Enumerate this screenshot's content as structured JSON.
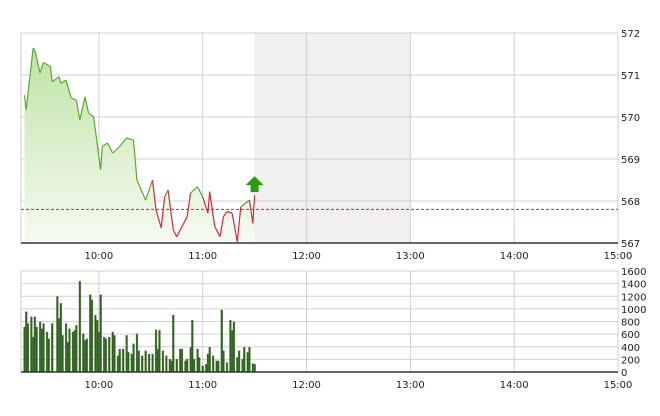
{
  "chart_data": [
    {
      "type": "area",
      "panel": "price",
      "x_ticks": [
        "10:00",
        "11:00",
        "12:00",
        "13:00",
        "14:00",
        "15:00"
      ],
      "y_ticks": [
        567,
        568,
        569,
        570,
        571,
        572
      ],
      "xlim": [
        "09:15",
        "15:00"
      ],
      "ylim": [
        567,
        572
      ],
      "grid": true,
      "y_axis_side": "right",
      "reference_value": 567.8,
      "shaded_range": [
        "11:30",
        "13:00"
      ],
      "colors": {
        "up": "#5aa832",
        "down": "#d9263a",
        "fill": "#bfe3a6",
        "reference": "#e02020",
        "shade": "#f0f0f0",
        "grid": "#cccccc",
        "arrow": "#2e9a12"
      },
      "indicator_icon": "green-up-arrow-icon",
      "series": [
        {
          "x": [
            "09:17",
            "09:18",
            "09:22",
            "09:23",
            "09:26",
            "09:28",
            "09:32",
            "09:33",
            "09:37",
            "09:38",
            "09:41",
            "09:44",
            "09:47",
            "09:49",
            "09:52",
            "09:54",
            "09:57",
            "10:01",
            "10:02",
            "10:05",
            "10:08",
            "10:12",
            "10:16",
            "10:20",
            "10:22",
            "10:27",
            "10:31",
            "10:33",
            "10:36",
            "10:38",
            "10:40",
            "10:43",
            "10:45",
            "10:48",
            "10:51",
            "10:53",
            "10:57",
            "11:00",
            "11:03",
            "11:04",
            "11:07",
            "11:10",
            "11:12",
            "11:14",
            "11:17",
            "11:20",
            "11:22",
            "11:27",
            "11:29",
            "11:30"
          ],
          "y": [
            570.52,
            570.17,
            571.64,
            571.6,
            571.05,
            571.3,
            571.2,
            570.84,
            570.96,
            570.8,
            570.88,
            570.45,
            570.4,
            569.93,
            570.48,
            570.1,
            570.0,
            568.74,
            569.3,
            569.38,
            569.14,
            569.3,
            569.5,
            569.45,
            568.5,
            568.02,
            568.5,
            567.79,
            567.36,
            568.1,
            568.26,
            567.31,
            567.15,
            567.39,
            567.63,
            568.19,
            568.34,
            568.1,
            567.71,
            568.22,
            567.39,
            567.15,
            567.63,
            567.75,
            567.71,
            567.03,
            567.86,
            568.02,
            567.47,
            568.14
          ]
        }
      ]
    },
    {
      "type": "bar",
      "panel": "volume",
      "x_ticks": [
        "10:00",
        "11:00",
        "12:00",
        "13:00",
        "14:00",
        "15:00"
      ],
      "y_ticks": [
        0,
        200,
        400,
        600,
        800,
        1000,
        1200,
        1400,
        1600
      ],
      "xlim": [
        "09:15",
        "15:00"
      ],
      "ylim": [
        0,
        1600
      ],
      "grid": true,
      "y_axis_side": "right",
      "colors": {
        "bar": "#2f5f22",
        "bar_edge": "#5b8a48"
      },
      "x": [
        "09:17",
        "09:18",
        "09:19",
        "09:21",
        "09:22",
        "09:23",
        "09:24",
        "09:26",
        "09:27",
        "09:28",
        "09:30",
        "09:31",
        "09:33",
        "09:36",
        "09:37",
        "09:38",
        "09:39",
        "09:41",
        "09:42",
        "09:43",
        "09:45",
        "09:46",
        "09:47",
        "09:49",
        "09:51",
        "09:52",
        "09:53",
        "09:55",
        "09:56",
        "09:58",
        "09:59",
        "10:00",
        "10:01",
        "10:03",
        "10:04",
        "10:06",
        "10:08",
        "10:09",
        "10:11",
        "10:12",
        "10:14",
        "10:16",
        "10:17",
        "10:19",
        "10:20",
        "10:22",
        "10:23",
        "10:25",
        "10:27",
        "10:29",
        "10:31",
        "10:33",
        "10:34",
        "10:35",
        "10:37",
        "10:39",
        "10:41",
        "10:42",
        "10:43",
        "10:45",
        "10:47",
        "10:48",
        "10:50",
        "10:51",
        "10:53",
        "10:54",
        "10:55",
        "10:57",
        "10:58",
        "11:00",
        "11:02",
        "11:03",
        "11:04",
        "11:06",
        "11:08",
        "11:09",
        "11:11",
        "11:12",
        "11:14",
        "11:16",
        "11:17",
        "11:18",
        "11:20",
        "11:21",
        "11:23",
        "11:24",
        "11:26",
        "11:27",
        "11:29",
        "11:30"
      ],
      "values": [
        714,
        955,
        768,
        875,
        553,
        875,
        714,
        795,
        687,
        768,
        634,
        526,
        768,
        1197,
        848,
        1090,
        580,
        768,
        473,
        687,
        634,
        660,
        741,
        1439,
        607,
        500,
        526,
        1224,
        1144,
        902,
        822,
        634,
        1224,
        553,
        526,
        553,
        634,
        580,
        258,
        365,
        365,
        580,
        311,
        285,
        446,
        607,
        338,
        258,
        338,
        285,
        285,
        671,
        365,
        660,
        338,
        258,
        204,
        177,
        902,
        204,
        365,
        365,
        177,
        204,
        392,
        822,
        204,
        365,
        231,
        97,
        124,
        285,
        392,
        258,
        177,
        177,
        983,
        338,
        150,
        822,
        660,
        795,
        231,
        338,
        204,
        392,
        311,
        392,
        134,
        124
      ]
    }
  ]
}
